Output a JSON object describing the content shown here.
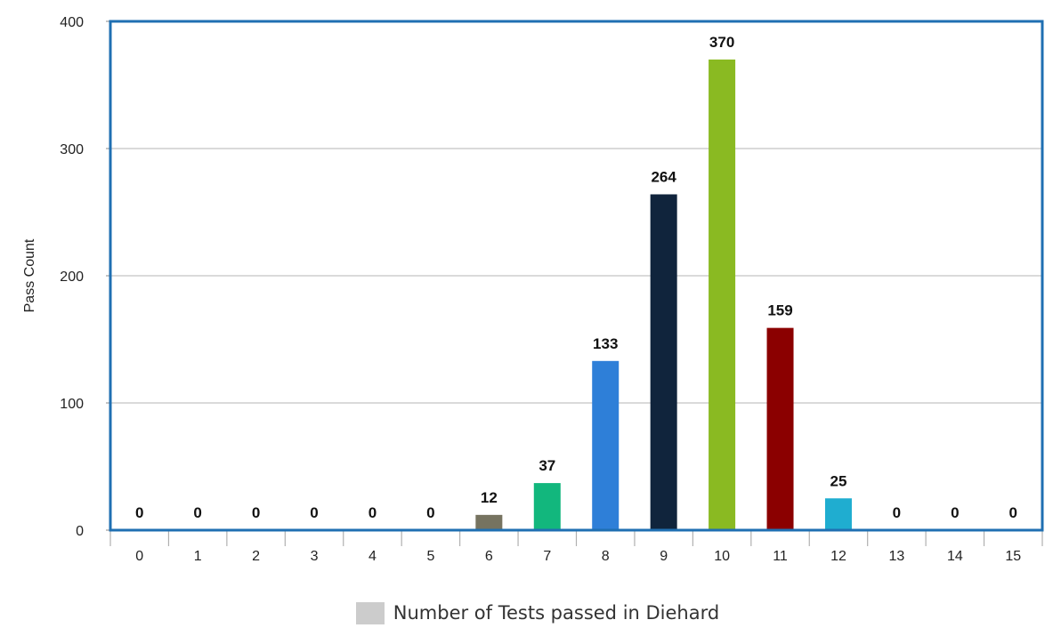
{
  "chart_data": {
    "type": "bar",
    "title": "",
    "xlabel": "",
    "ylabel": "Pass Count",
    "categories": [
      "0",
      "1",
      "2",
      "3",
      "4",
      "5",
      "6",
      "7",
      "8",
      "9",
      "10",
      "11",
      "12",
      "13",
      "14",
      "15"
    ],
    "values": [
      0,
      0,
      0,
      0,
      0,
      0,
      12,
      37,
      133,
      264,
      370,
      159,
      25,
      0,
      0,
      0
    ],
    "data_labels": [
      "0",
      "0",
      "0",
      "0",
      "0",
      "0",
      "12",
      "37",
      "133",
      "264",
      "370",
      "159",
      "25",
      "0",
      "0",
      "0"
    ],
    "bar_colors": [
      "#cccccc",
      "#cccccc",
      "#cccccc",
      "#cccccc",
      "#cccccc",
      "#cccccc",
      "#767360",
      "#12b77d",
      "#2e7fd8",
      "#10243c",
      "#8aba22",
      "#8b0000",
      "#1fadd0",
      "#cccccc",
      "#cccccc",
      "#cccccc"
    ],
    "ylim": [
      0,
      400
    ],
    "yticks": [
      "0",
      "100",
      "200",
      "300",
      "400"
    ],
    "ytick_values": [
      0,
      100,
      200,
      300,
      400
    ],
    "grid": true,
    "plot_border_color": "#1f6fb2",
    "legend": {
      "position": "bottom",
      "entries": [
        {
          "name": "Number of Tests passed in Diehard",
          "color": "#cccccc"
        }
      ]
    }
  }
}
